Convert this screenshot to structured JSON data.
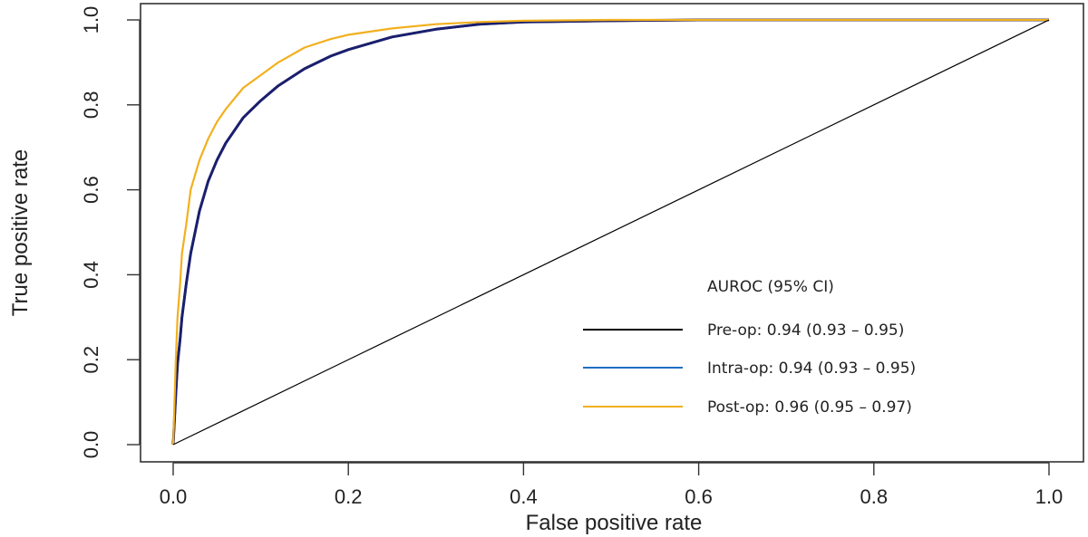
{
  "chart_data": {
    "type": "line",
    "title": "",
    "xlabel": "False positive rate",
    "ylabel": "True positive rate",
    "xlim": [
      0,
      1
    ],
    "ylim": [
      0,
      1
    ],
    "x_ticks": [
      "0.0",
      "0.2",
      "0.4",
      "0.6",
      "0.8",
      "1.0"
    ],
    "y_ticks": [
      "0.0",
      "0.2",
      "0.4",
      "0.6",
      "0.8",
      "1.0"
    ],
    "grid": false,
    "legend_placement": "bottom-right",
    "legend_title": "AUROC (95% CI)",
    "series": [
      {
        "name": "Pre-op: 0.94 (0.93 – 0.95)",
        "color": "#000000",
        "x": [
          0,
          0.003,
          0.005,
          0.008,
          0.01,
          0.015,
          0.02,
          0.03,
          0.04,
          0.05,
          0.06,
          0.08,
          0.1,
          0.12,
          0.15,
          0.18,
          0.2,
          0.25,
          0.3,
          0.35,
          0.4,
          0.5,
          0.6,
          0.8,
          1.0
        ],
        "y": [
          0,
          0.12,
          0.19,
          0.25,
          0.3,
          0.38,
          0.45,
          0.55,
          0.62,
          0.67,
          0.71,
          0.77,
          0.81,
          0.845,
          0.885,
          0.915,
          0.93,
          0.96,
          0.978,
          0.99,
          0.995,
          0.998,
          1.0,
          1.0,
          1.0
        ]
      },
      {
        "name": "Intra-op: 0.94 (0.93 – 0.95)",
        "color": "#1f6fc5",
        "x": [
          0,
          0.003,
          0.005,
          0.008,
          0.01,
          0.015,
          0.02,
          0.03,
          0.04,
          0.05,
          0.06,
          0.08,
          0.1,
          0.12,
          0.15,
          0.18,
          0.2,
          0.25,
          0.3,
          0.35,
          0.4,
          0.5,
          0.6,
          0.8,
          1.0
        ],
        "y": [
          0,
          0.12,
          0.19,
          0.25,
          0.3,
          0.38,
          0.45,
          0.55,
          0.62,
          0.67,
          0.71,
          0.77,
          0.81,
          0.845,
          0.885,
          0.915,
          0.93,
          0.96,
          0.978,
          0.99,
          0.995,
          0.998,
          1.0,
          1.0,
          1.0
        ]
      },
      {
        "name": "Post-op: 0.96 (0.95 – 0.97)",
        "color": "#f2b01e",
        "x": [
          0,
          0.003,
          0.005,
          0.008,
          0.01,
          0.015,
          0.02,
          0.03,
          0.04,
          0.05,
          0.06,
          0.08,
          0.1,
          0.12,
          0.15,
          0.18,
          0.2,
          0.25,
          0.3,
          0.35,
          0.4,
          0.5,
          1.0
        ],
        "y": [
          0,
          0.2,
          0.3,
          0.38,
          0.45,
          0.52,
          0.6,
          0.67,
          0.72,
          0.76,
          0.79,
          0.84,
          0.87,
          0.9,
          0.935,
          0.955,
          0.965,
          0.98,
          0.99,
          0.995,
          0.998,
          1.0,
          1.0
        ]
      },
      {
        "name": "",
        "color": "#000000",
        "x": [
          0,
          1
        ],
        "y": [
          0,
          1
        ]
      }
    ]
  }
}
